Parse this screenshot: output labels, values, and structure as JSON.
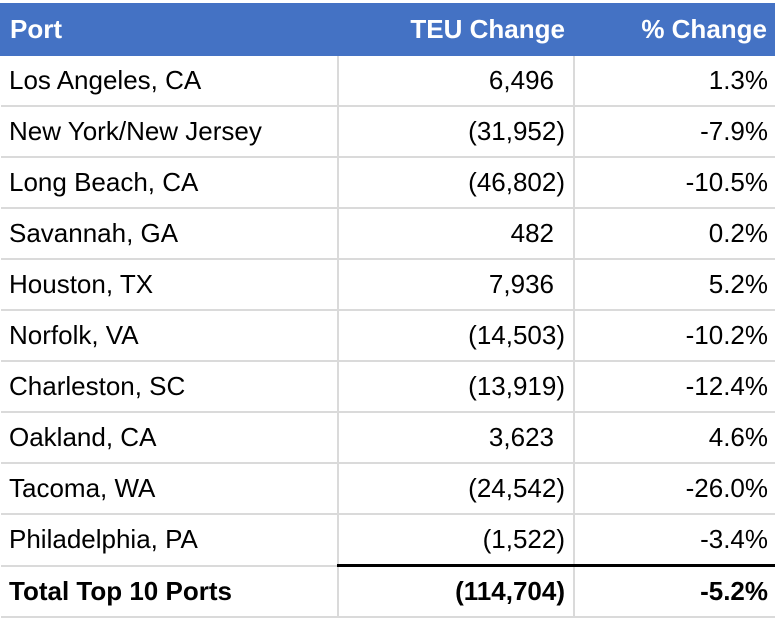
{
  "header": {
    "port": "Port",
    "teu_change": "TEU Change",
    "pct_change": "% Change"
  },
  "rows": [
    {
      "port": "Los Angeles, CA",
      "teu": "6,496",
      "pct": "1.3%"
    },
    {
      "port": "New York/New Jersey",
      "teu": "(31,952)",
      "pct": "-7.9%"
    },
    {
      "port": "Long Beach, CA",
      "teu": "(46,802)",
      "pct": "-10.5%"
    },
    {
      "port": "Savannah, GA",
      "teu": "482",
      "pct": "0.2%"
    },
    {
      "port": "Houston, TX",
      "teu": "7,936",
      "pct": "5.2%"
    },
    {
      "port": "Norfolk, VA",
      "teu": "(14,503)",
      "pct": "-10.2%"
    },
    {
      "port": "Charleston, SC",
      "teu": "(13,919)",
      "pct": "-12.4%"
    },
    {
      "port": "Oakland, CA",
      "teu": "3,623",
      "pct": "4.6%"
    },
    {
      "port": "Tacoma, WA",
      "teu": "(24,542)",
      "pct": "-26.0%"
    },
    {
      "port": "Philadelphia, PA",
      "teu": "(1,522)",
      "pct": "-3.4%"
    }
  ],
  "total": {
    "port": "Total Top 10 Ports",
    "teu": "(114,704)",
    "pct": "-5.2%"
  },
  "colors": {
    "header_bg": "#4472C4",
    "header_text": "#FFFFFF",
    "grid": "#DADADA"
  }
}
